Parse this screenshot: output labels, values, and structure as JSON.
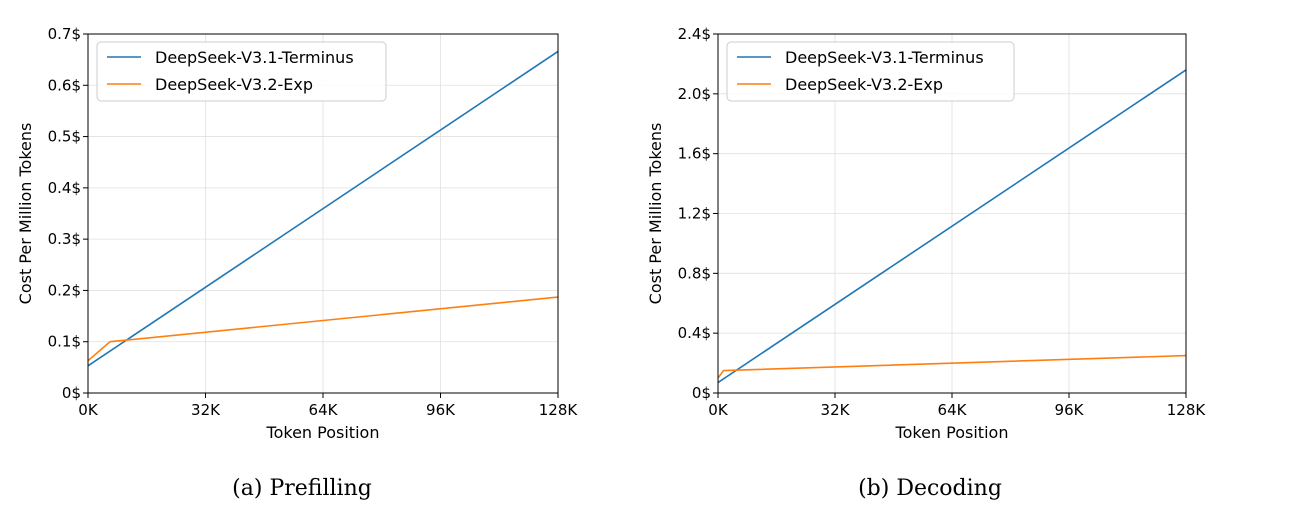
{
  "chart_data": [
    {
      "type": "line",
      "caption": "(a)  Prefilling",
      "xlabel": "Token Position",
      "ylabel": "Cost Per Million Tokens",
      "xlim": [
        0,
        128
      ],
      "ylim": [
        0,
        0.7
      ],
      "xticks": [
        {
          "value": 0,
          "label": "0K"
        },
        {
          "value": 32,
          "label": "32K"
        },
        {
          "value": 64,
          "label": "64K"
        },
        {
          "value": 96,
          "label": "96K"
        },
        {
          "value": 128,
          "label": "128K"
        }
      ],
      "yticks": [
        {
          "value": 0,
          "label": "0$"
        },
        {
          "value": 0.1,
          "label": "0.1$"
        },
        {
          "value": 0.2,
          "label": "0.2$"
        },
        {
          "value": 0.3,
          "label": "0.3$"
        },
        {
          "value": 0.4,
          "label": "0.4$"
        },
        {
          "value": 0.5,
          "label": "0.5$"
        },
        {
          "value": 0.6,
          "label": "0.6$"
        },
        {
          "value": 0.7,
          "label": "0.7$"
        }
      ],
      "grid": true,
      "legend_position": "top-left",
      "series": [
        {
          "name": "DeepSeek-V3.1-Terminus",
          "color": "#1f77b4",
          "x": [
            0,
            128
          ],
          "y": [
            0.053,
            0.666
          ]
        },
        {
          "name": "DeepSeek-V3.2-Exp",
          "color": "#ff7f0e",
          "x": [
            0,
            6,
            128
          ],
          "y": [
            0.063,
            0.1,
            0.187
          ]
        }
      ]
    },
    {
      "type": "line",
      "caption": "(b)  Decoding",
      "xlabel": "Token Position",
      "ylabel": "Cost Per Million Tokens",
      "xlim": [
        0,
        128
      ],
      "ylim": [
        0,
        2.4
      ],
      "xticks": [
        {
          "value": 0,
          "label": "0K"
        },
        {
          "value": 32,
          "label": "32K"
        },
        {
          "value": 64,
          "label": "64K"
        },
        {
          "value": 96,
          "label": "96K"
        },
        {
          "value": 128,
          "label": "128K"
        }
      ],
      "yticks": [
        {
          "value": 0,
          "label": "0$"
        },
        {
          "value": 0.4,
          "label": "0.4$"
        },
        {
          "value": 0.8,
          "label": "0.8$"
        },
        {
          "value": 1.2,
          "label": "1.2$"
        },
        {
          "value": 1.6,
          "label": "1.6$"
        },
        {
          "value": 2.0,
          "label": "2.0$"
        },
        {
          "value": 2.4,
          "label": "2.4$"
        }
      ],
      "grid": true,
      "legend_position": "top-left",
      "series": [
        {
          "name": "DeepSeek-V3.1-Terminus",
          "color": "#1f77b4",
          "x": [
            0,
            128
          ],
          "y": [
            0.07,
            2.16
          ]
        },
        {
          "name": "DeepSeek-V3.2-Exp",
          "color": "#ff7f0e",
          "x": [
            0,
            1.5,
            128
          ],
          "y": [
            0.1,
            0.15,
            0.25
          ]
        }
      ]
    }
  ]
}
